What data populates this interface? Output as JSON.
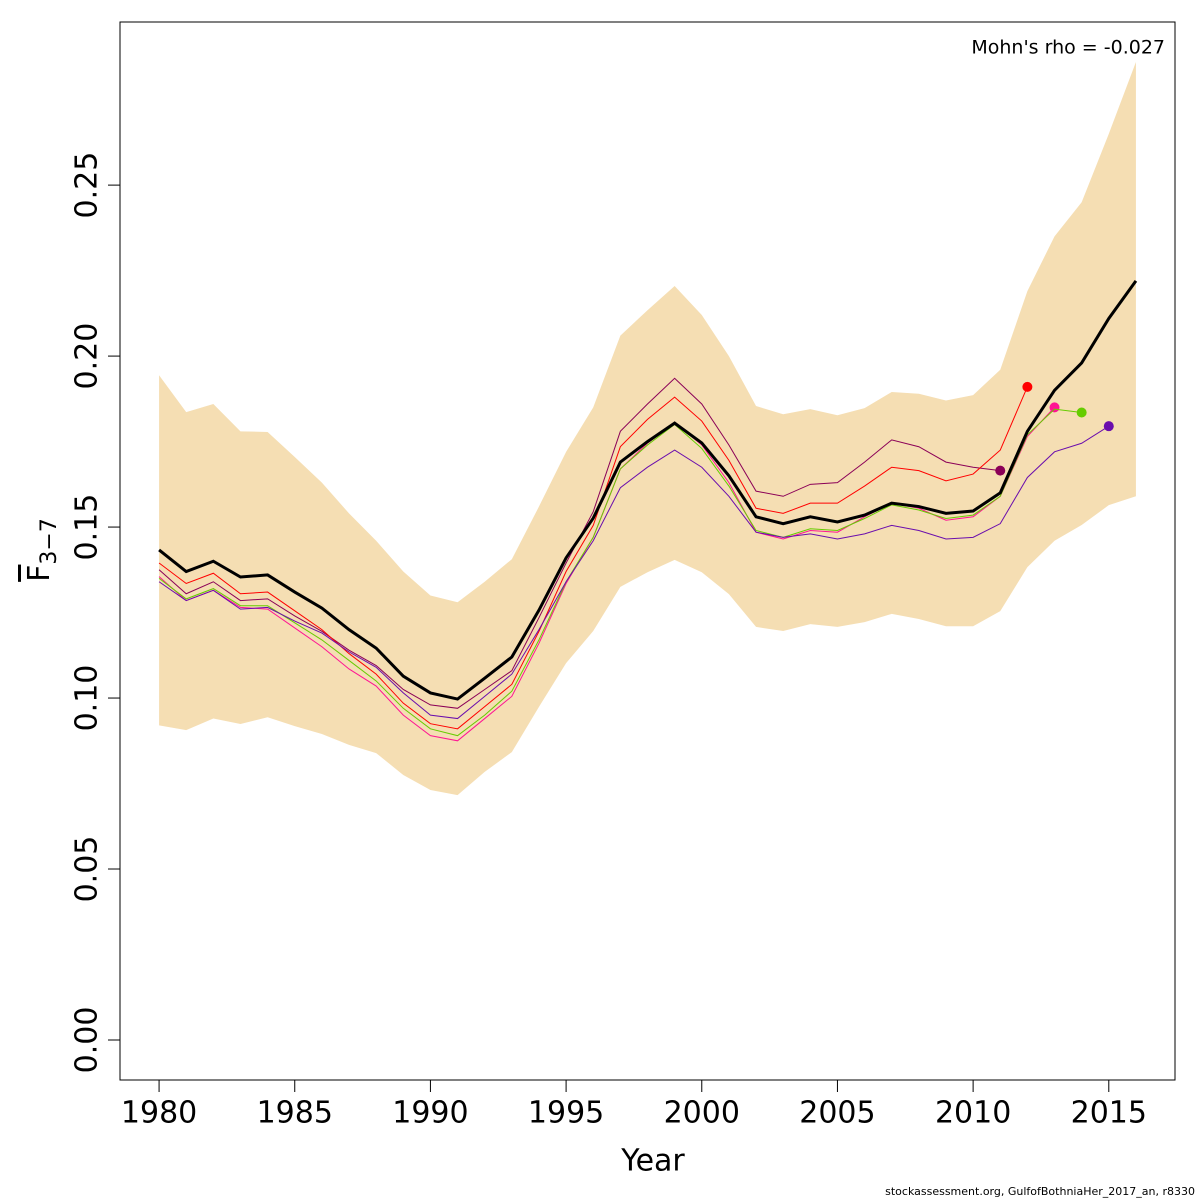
{
  "chart_data": {
    "type": "line",
    "xlabel": "Year",
    "ylabel": [
      "F",
      "3−7"
    ],
    "annotation": "Mohn's rho = -0.027",
    "footer": "stockassessment.org, GulfofBothniaHer_2017_an, r8330",
    "x": [
      1980,
      1981,
      1982,
      1983,
      1984,
      1985,
      1986,
      1987,
      1988,
      1989,
      1990,
      1991,
      1992,
      1993,
      1994,
      1995,
      1996,
      1997,
      1998,
      1999,
      2000,
      2001,
      2002,
      2003,
      2004,
      2005,
      2006,
      2007,
      2008,
      2009,
      2010,
      2011,
      2012,
      2013,
      2014,
      2015,
      2016
    ],
    "xlim": [
      1978.56,
      2017.44
    ],
    "xticks": [
      1980,
      1985,
      1990,
      1995,
      2000,
      2005,
      2010,
      2015
    ],
    "ylim": [
      -0.0117,
      0.2977
    ],
    "yticks": [
      {
        "value": 0,
        "label": "0.00"
      },
      {
        "value": 0.05,
        "label": "0.05"
      },
      {
        "value": 0.1,
        "label": "0.10"
      },
      {
        "value": 0.15,
        "label": "0.15"
      },
      {
        "value": 0.2,
        "label": "0.20"
      },
      {
        "value": 0.25,
        "label": "0.25"
      }
    ],
    "band": {
      "color": "#f5deb3",
      "upper": [
        0.1944,
        0.1836,
        0.186,
        0.178,
        0.1778,
        0.1705,
        0.163,
        0.154,
        0.146,
        0.137,
        0.13,
        0.128,
        0.134,
        0.1406,
        0.156,
        0.172,
        0.185,
        0.206,
        0.2134,
        0.2205,
        0.212,
        0.2,
        0.1854,
        0.183,
        0.1845,
        0.1827,
        0.1848,
        0.1895,
        0.189,
        0.187,
        0.1886,
        0.196,
        0.219,
        0.235,
        0.245,
        0.265,
        0.286
      ],
      "lower": [
        0.092,
        0.0906,
        0.094,
        0.0924,
        0.0944,
        0.0918,
        0.0895,
        0.0863,
        0.0839,
        0.0775,
        0.0731,
        0.0716,
        0.0784,
        0.0842,
        0.0974,
        0.1102,
        0.1196,
        0.1325,
        0.1368,
        0.1404,
        0.1368,
        0.1304,
        0.1208,
        0.1196,
        0.1216,
        0.1208,
        0.1222,
        0.1246,
        0.1231,
        0.121,
        0.121,
        0.1254,
        0.1383,
        0.146,
        0.1506,
        0.1564,
        0.159
      ]
    },
    "series": [
      {
        "color": "#8b0057",
        "values": [
          0.1375,
          0.1305,
          0.134,
          0.1285,
          0.129,
          0.124,
          0.1195,
          0.114,
          0.1095,
          0.1025,
          0.098,
          0.097,
          0.1025,
          0.108,
          0.1235,
          0.1395,
          0.1545,
          0.178,
          0.186,
          0.1935,
          0.186,
          0.174,
          0.1605,
          0.159,
          0.1625,
          0.163,
          0.169,
          0.1755,
          0.1735,
          0.169,
          0.1675,
          0.1665,
          null,
          null,
          null,
          null,
          null
        ]
      },
      {
        "color": "#ff0000",
        "values": [
          0.1395,
          0.1335,
          0.1365,
          0.1305,
          0.131,
          0.1255,
          0.12,
          0.113,
          0.107,
          0.0985,
          0.0925,
          0.091,
          0.0975,
          0.104,
          0.1195,
          0.137,
          0.1505,
          0.1735,
          0.1815,
          0.188,
          0.181,
          0.1695,
          0.1555,
          0.154,
          0.157,
          0.157,
          0.162,
          0.1675,
          0.1665,
          0.1635,
          0.1655,
          0.1725,
          0.191,
          null,
          null,
          null,
          null
        ]
      },
      {
        "color": "#ff1493",
        "values": [
          0.1355,
          0.1285,
          0.1315,
          0.1265,
          0.126,
          0.1205,
          0.115,
          0.1085,
          0.1035,
          0.095,
          0.089,
          0.0875,
          0.094,
          0.1005,
          0.116,
          0.1335,
          0.147,
          0.167,
          0.1745,
          0.1805,
          0.174,
          0.163,
          0.1485,
          0.1465,
          0.149,
          0.1485,
          0.153,
          0.157,
          0.1555,
          0.152,
          0.153,
          0.159,
          0.1765,
          0.185,
          null,
          null,
          null
        ]
      },
      {
        "color": "#66cc00",
        "values": [
          0.135,
          0.129,
          0.132,
          0.127,
          0.127,
          0.122,
          0.117,
          0.111,
          0.105,
          0.097,
          0.091,
          0.089,
          0.095,
          0.102,
          0.117,
          0.134,
          0.147,
          0.167,
          0.174,
          0.18,
          0.173,
          0.162,
          0.149,
          0.147,
          0.1495,
          0.149,
          0.1525,
          0.1565,
          0.155,
          0.1525,
          0.1535,
          0.159,
          0.177,
          0.1845,
          0.1835,
          null,
          null
        ]
      },
      {
        "color": "#6a0dad",
        "values": [
          0.134,
          0.1285,
          0.1315,
          0.126,
          0.1265,
          0.1225,
          0.119,
          0.1135,
          0.109,
          0.1015,
          0.095,
          0.094,
          0.1005,
          0.107,
          0.12,
          0.134,
          0.146,
          0.1615,
          0.1675,
          0.1725,
          0.1675,
          0.159,
          0.1485,
          0.147,
          0.148,
          0.1465,
          0.148,
          0.1505,
          0.149,
          0.1465,
          0.147,
          0.151,
          0.1645,
          0.172,
          0.1745,
          0.1795,
          null
        ]
      },
      {
        "color": "#000000",
        "values": [
          0.1433,
          0.137,
          0.14,
          0.1354,
          0.136,
          0.131,
          0.1263,
          0.12,
          0.1146,
          0.1064,
          0.1015,
          0.0997,
          0.1058,
          0.112,
          0.1257,
          0.141,
          0.1526,
          0.169,
          0.175,
          0.1804,
          0.1746,
          0.165,
          0.153,
          0.151,
          0.153,
          0.1515,
          0.1535,
          0.157,
          0.156,
          0.154,
          0.1547,
          0.16,
          0.178,
          0.19,
          0.198,
          0.211,
          0.222
        ]
      }
    ]
  }
}
